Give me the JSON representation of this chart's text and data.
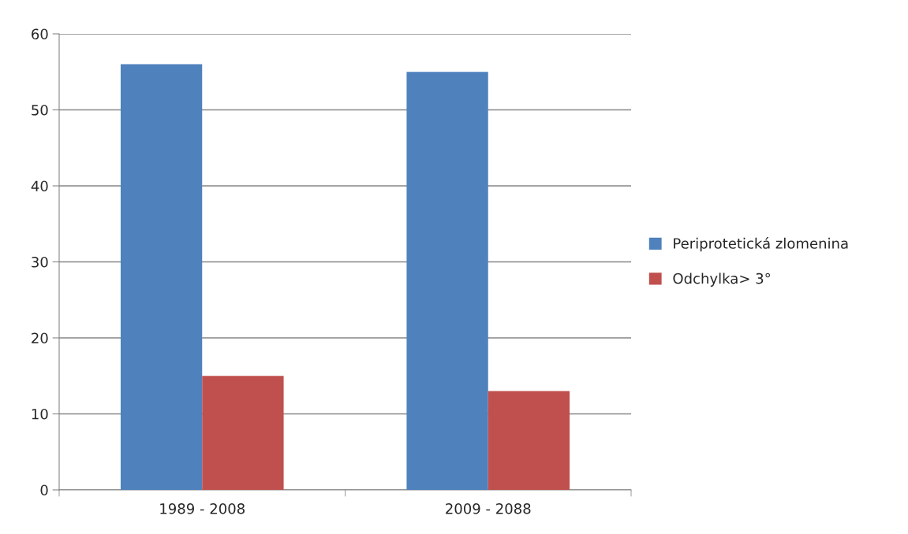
{
  "chart_data": {
    "type": "bar",
    "categories": [
      "1989 - 2008",
      "2009 - 2088"
    ],
    "series": [
      {
        "name": "Periprotetická zlomenina",
        "color": "#4f81bd",
        "values": [
          56,
          55
        ]
      },
      {
        "name": "Odchylka> 3°",
        "color": "#c0504d",
        "values": [
          15,
          13
        ]
      }
    ],
    "ylim": [
      0,
      60
    ],
    "yticks": [
      0,
      10,
      20,
      30,
      40,
      50,
      60
    ],
    "grid": "y",
    "legend": "right"
  }
}
